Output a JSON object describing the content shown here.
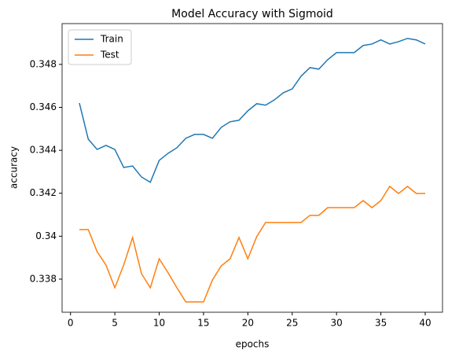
{
  "chart_data": {
    "type": "line",
    "title": "Model Accuracy with Sigmoid",
    "xlabel": "epochs",
    "ylabel": "accuracy",
    "x": [
      1,
      2,
      3,
      4,
      5,
      6,
      7,
      8,
      9,
      10,
      11,
      12,
      13,
      14,
      15,
      16,
      17,
      18,
      19,
      20,
      21,
      22,
      23,
      24,
      25,
      26,
      27,
      28,
      29,
      30,
      31,
      32,
      33,
      34,
      35,
      36,
      37,
      38,
      39,
      40
    ],
    "series": [
      {
        "name": "Train",
        "color": "#1f77b4",
        "values": [
          0.3462,
          0.34452,
          0.34404,
          0.34423,
          0.34404,
          0.3432,
          0.34327,
          0.34276,
          0.34251,
          0.34353,
          0.34386,
          0.34412,
          0.34456,
          0.34474,
          0.34474,
          0.34456,
          0.34507,
          0.34533,
          0.3454,
          0.34584,
          0.34617,
          0.3461,
          0.34635,
          0.34668,
          0.34686,
          0.34745,
          0.34785,
          0.34778,
          0.34822,
          0.34855,
          0.34855,
          0.34855,
          0.34888,
          0.34895,
          0.34914,
          0.34895,
          0.34906,
          0.34921,
          0.34914,
          0.34895
        ]
      },
      {
        "name": "Test",
        "color": "#ff7f0e",
        "values": [
          0.34031,
          0.34031,
          0.33928,
          0.33866,
          0.3376,
          0.33866,
          0.33994,
          0.33826,
          0.3376,
          0.33895,
          0.3383,
          0.3376,
          0.33694,
          0.33694,
          0.33694,
          0.33796,
          0.33862,
          0.33895,
          0.33994,
          0.33895,
          0.33998,
          0.34064,
          0.34064,
          0.34064,
          0.34064,
          0.34064,
          0.34097,
          0.34097,
          0.34133,
          0.34133,
          0.34133,
          0.34133,
          0.34166,
          0.34133,
          0.34166,
          0.34232,
          0.34199,
          0.34232,
          0.34199,
          0.34199
        ]
      }
    ],
    "xlim": [
      -0.95,
      41.95
    ],
    "xticks": [
      0,
      5,
      10,
      15,
      20,
      25,
      30,
      35,
      40
    ],
    "ylim": [
      0.33646,
      0.3499
    ],
    "yticks": [
      0.338,
      0.34,
      0.342,
      0.344,
      0.346,
      0.348
    ],
    "legend": "upper left"
  }
}
